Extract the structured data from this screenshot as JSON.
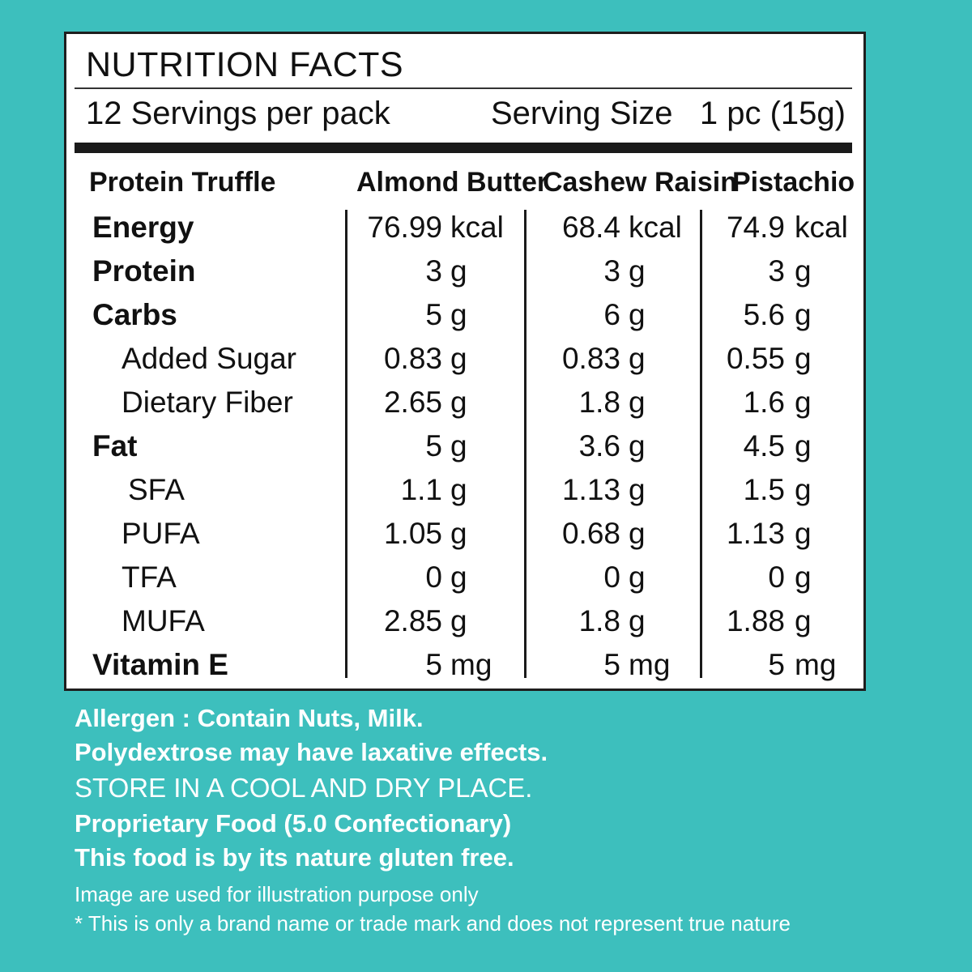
{
  "panel": {
    "title": "NUTRITION FACTS",
    "servings_per_pack": "12 Servings per pack",
    "serving_size": "Serving Size   1 pc (15g)"
  },
  "columns": {
    "label_header": "Protein Truffle",
    "headers": [
      "Almond Butter",
      "Cashew Raisin",
      "Pistachio"
    ]
  },
  "rows": [
    {
      "label": "Energy",
      "type": "main",
      "values": [
        "76.99",
        "68.4",
        "74.9"
      ],
      "units": [
        "kcal",
        "kcal",
        "kcal"
      ]
    },
    {
      "label": "Protein",
      "type": "main",
      "values": [
        "3",
        "3",
        "3"
      ],
      "units": [
        "g",
        "g",
        "g"
      ]
    },
    {
      "label": "Carbs",
      "type": "main",
      "values": [
        "5",
        "6",
        "5.6"
      ],
      "units": [
        "g",
        "g",
        "g"
      ]
    },
    {
      "label": "Added Sugar",
      "type": "sub",
      "values": [
        "0.83",
        "0.83",
        "0.55"
      ],
      "units": [
        "g",
        "g",
        "g"
      ]
    },
    {
      "label": "Dietary Fiber",
      "type": "sub",
      "values": [
        "2.65",
        "1.8",
        "1.6"
      ],
      "units": [
        "g",
        "g",
        "g"
      ]
    },
    {
      "label": "Fat",
      "type": "main",
      "values": [
        "5",
        "3.6",
        "4.5"
      ],
      "units": [
        "g",
        "g",
        "g"
      ]
    },
    {
      "label": "SFA",
      "type": "sub",
      "values": [
        "1.1",
        "1.13",
        "1.5"
      ],
      "units": [
        "g",
        "g",
        "g"
      ]
    },
    {
      "label": "PUFA",
      "type": "sub",
      "values": [
        "1.05",
        "0.68",
        "1.13"
      ],
      "units": [
        "g",
        "g",
        "g"
      ]
    },
    {
      "label": "TFA",
      "type": "sub",
      "values": [
        "0",
        "0",
        "0"
      ],
      "units": [
        "g",
        "g",
        "g"
      ]
    },
    {
      "label": "MUFA",
      "type": "sub",
      "values": [
        "2.85",
        "1.8",
        "1.88"
      ],
      "units": [
        "g",
        "g",
        "g"
      ]
    },
    {
      "label": "Vitamin E",
      "type": "main",
      "values": [
        "5",
        "5",
        "5"
      ],
      "units": [
        "mg",
        "mg",
        "mg"
      ]
    }
  ],
  "notes": {
    "allergen": "Allergen : Contain Nuts, Milk.",
    "laxative": "Polydextrose may have laxative effects.",
    "storage": "STORE IN A COOL AND DRY PLACE.",
    "proprietary": "Proprietary Food (5.0 Confectionary)",
    "gluten": "This food is by its nature gluten free.",
    "illustration": "Image are used for illustration purpose only",
    "trademark": "* This is only a brand name or trade mark and does not represent true nature"
  },
  "colors": {
    "background": "#3dbfbd",
    "panel": "#ffffff",
    "ink": "#111111"
  }
}
